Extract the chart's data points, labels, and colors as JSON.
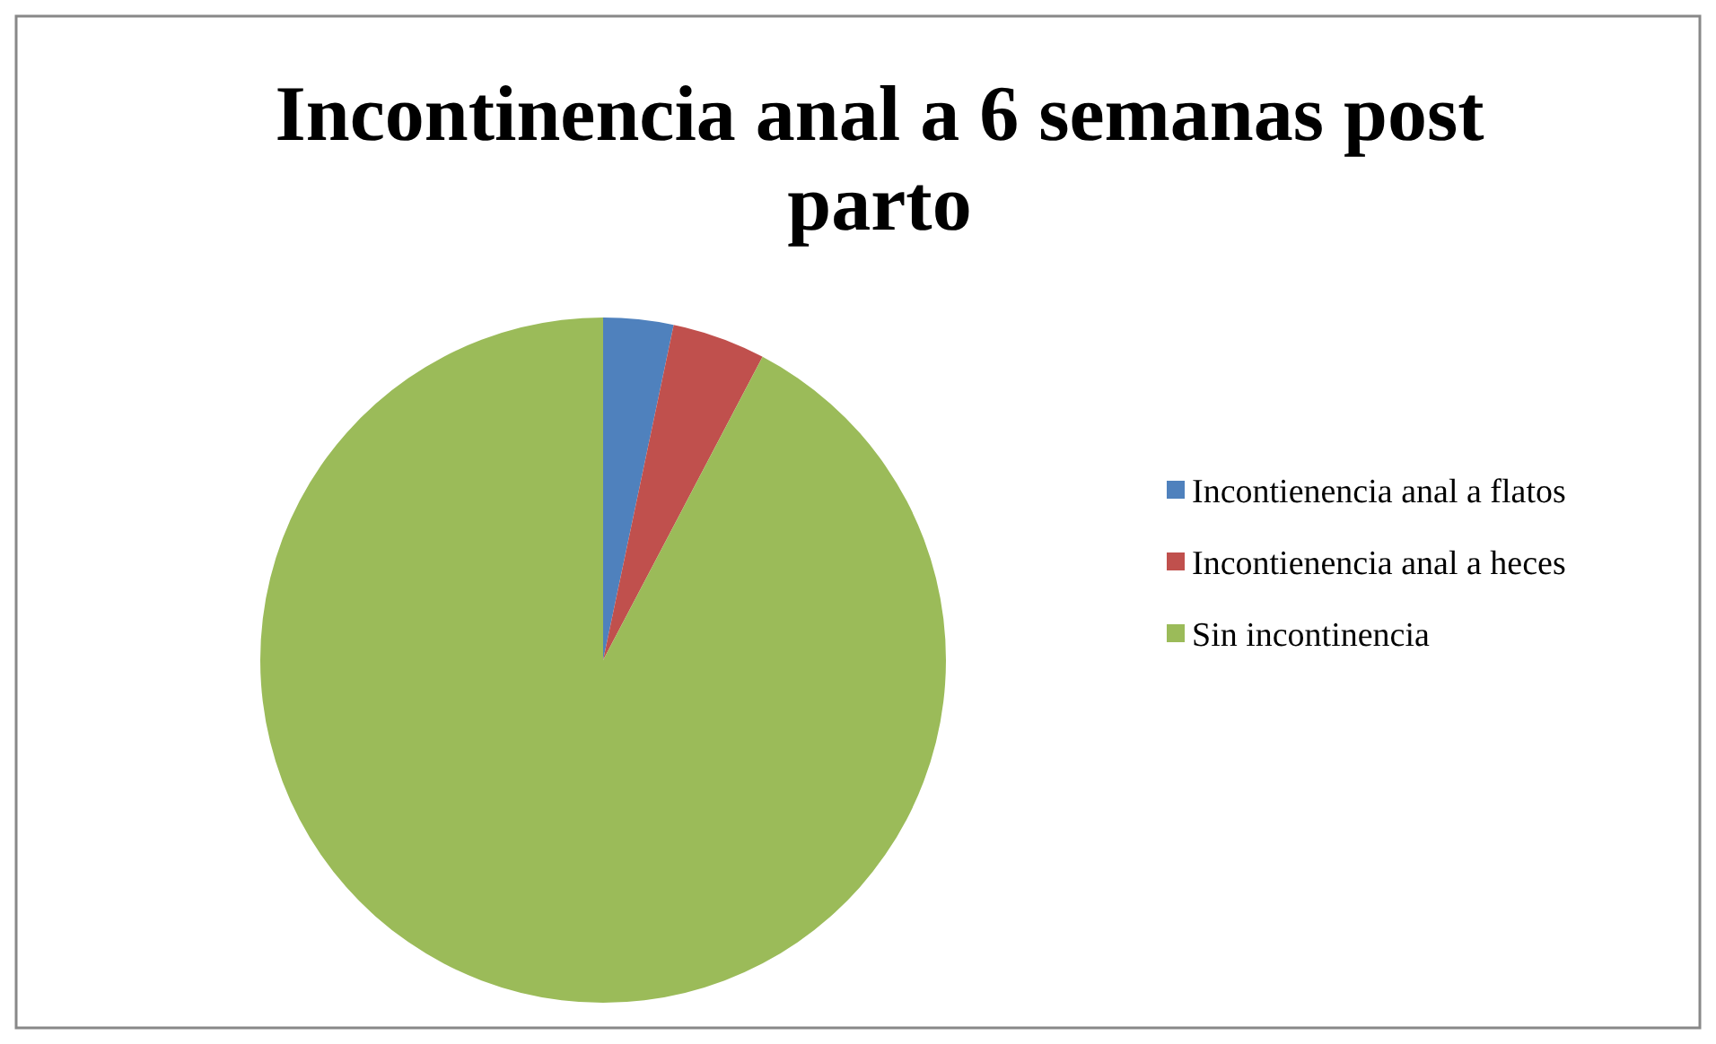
{
  "chart_data": {
    "type": "pie",
    "title": "Incontinencia anal a 6 semanas post parto",
    "categories": [
      "Incontienencia anal a flatos",
      "Incontienencia anal a heces",
      "Sin incontinencia"
    ],
    "values": [
      3.3,
      4.4,
      92.3
    ],
    "colors": [
      "#4f81bd",
      "#c0504d",
      "#9bbb59"
    ],
    "legend": "right"
  }
}
